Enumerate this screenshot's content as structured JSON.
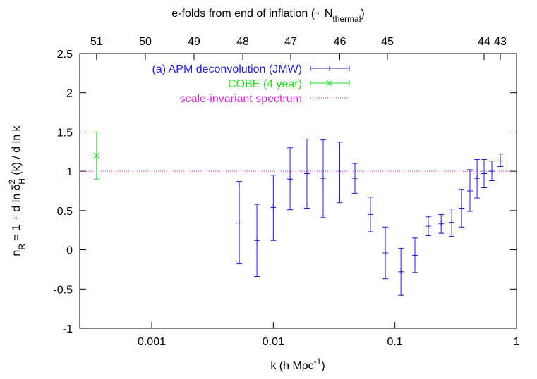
{
  "chart_data": {
    "type": "errorbar",
    "xlabel": [
      "k (h Mpc",
      "-1",
      ")"
    ],
    "x2label": [
      "e-folds from end of inflation (+ N",
      "thermal",
      ")"
    ],
    "ylabel": [
      "n",
      "R",
      " = 1 + d ln δ",
      "2",
      "H",
      " (k) / d ln k"
    ],
    "xscale": "log",
    "xlim": [
      0.000256,
      1
    ],
    "xticks": [
      0.001,
      0.01,
      0.1,
      1
    ],
    "x2ticks": [
      {
        "value": 0.000352,
        "label": "51"
      },
      {
        "value": 0.000887,
        "label": "50"
      },
      {
        "value": 0.00223,
        "label": "49"
      },
      {
        "value": 0.00561,
        "label": "48"
      },
      {
        "value": 0.0139,
        "label": "47"
      },
      {
        "value": 0.0352,
        "label": "46"
      },
      {
        "value": 0.0867,
        "label": "45"
      },
      {
        "value": 0.541,
        "label": "44"
      },
      {
        "value": 0.736,
        "label": "43"
      }
    ],
    "ylim": [
      -1,
      2.5
    ],
    "yticks": [
      -1,
      -0.5,
      0,
      0.5,
      1,
      1.5,
      2,
      2.5
    ],
    "series": [
      {
        "name": "(a) APM deconvolution (JMW)",
        "color": "#2222cc",
        "marker": "+",
        "x": [
          0.00525,
          0.00733,
          0.01,
          0.01374,
          0.0189,
          0.0257,
          0.0352,
          0.0469,
          0.0629,
          0.0834,
          0.112,
          0.146,
          0.188,
          0.24,
          0.293,
          0.353,
          0.414,
          0.474,
          0.541,
          0.627,
          0.736
        ],
        "values": [
          0.34,
          0.12,
          0.54,
          0.9,
          0.97,
          0.91,
          0.98,
          0.91,
          0.45,
          -0.04,
          -0.28,
          -0.07,
          0.3,
          0.33,
          0.35,
          0.53,
          0.75,
          0.91,
          0.97,
          1.0,
          1.13
        ],
        "lower": [
          -0.18,
          -0.34,
          0.12,
          0.51,
          0.53,
          0.41,
          0.6,
          0.72,
          0.23,
          -0.37,
          -0.58,
          -0.29,
          0.18,
          0.21,
          0.17,
          0.29,
          0.49,
          0.66,
          0.79,
          0.88,
          1.06
        ],
        "upper": [
          0.87,
          0.58,
          0.95,
          1.3,
          1.41,
          1.4,
          1.37,
          1.1,
          0.67,
          0.29,
          0.02,
          0.15,
          0.42,
          0.45,
          0.52,
          0.77,
          1.02,
          1.15,
          1.15,
          1.13,
          1.22
        ]
      },
      {
        "name": "COBE (4 year)",
        "color": "#22dd22",
        "marker": "x",
        "x": [
          0.000352
        ],
        "values": [
          1.2
        ],
        "lower": [
          0.9
        ],
        "upper": [
          1.5
        ]
      }
    ],
    "reference": {
      "name": "scale-invariant spectrum",
      "color": "#dd22dd",
      "value": 1
    },
    "legend": "top-right"
  }
}
